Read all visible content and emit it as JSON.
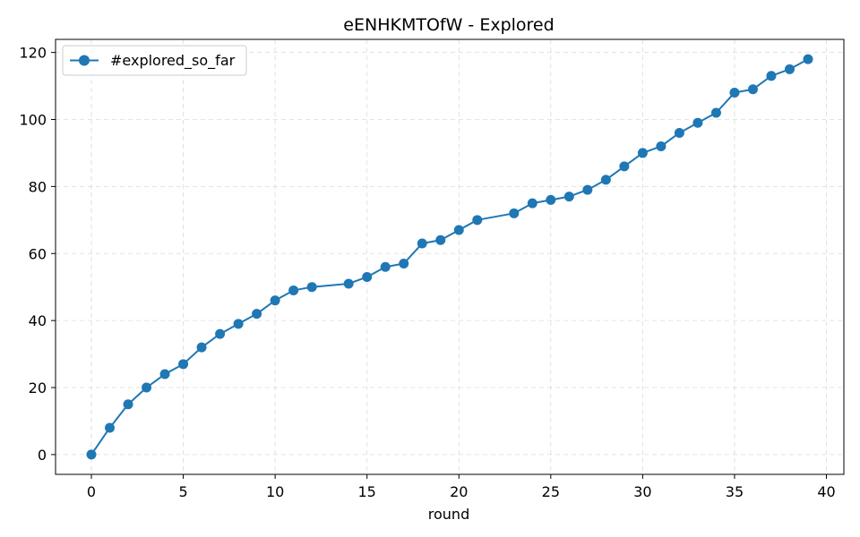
{
  "chart_data": {
    "type": "line",
    "title": "eENHKMTOfW - Explored",
    "xlabel": "round",
    "ylabel": "",
    "xlim": [
      -1.95,
      40.95
    ],
    "ylim": [
      -5.9,
      123.9
    ],
    "xticks": [
      0,
      5,
      10,
      15,
      20,
      25,
      30,
      35,
      40
    ],
    "yticks": [
      0,
      20,
      40,
      60,
      80,
      100,
      120
    ],
    "grid": true,
    "legend_position": "top-left",
    "series": [
      {
        "name": "#explored_so_far",
        "color": "#1f77b4",
        "marker": "circle",
        "x": [
          0,
          1,
          2,
          3,
          4,
          5,
          6,
          7,
          8,
          9,
          10,
          11,
          12,
          14,
          15,
          16,
          17,
          18,
          19,
          20,
          21,
          23,
          24,
          25,
          26,
          27,
          28,
          29,
          30,
          31,
          32,
          33,
          34,
          35,
          36,
          37,
          38,
          39
        ],
        "y": [
          0,
          8,
          15,
          20,
          24,
          27,
          32,
          36,
          39,
          42,
          46,
          49,
          50,
          51,
          53,
          56,
          57,
          63,
          64,
          67,
          70,
          72,
          75,
          76,
          77,
          79,
          82,
          86,
          90,
          92,
          96,
          99,
          102,
          108,
          109,
          113,
          115,
          118
        ]
      }
    ]
  }
}
